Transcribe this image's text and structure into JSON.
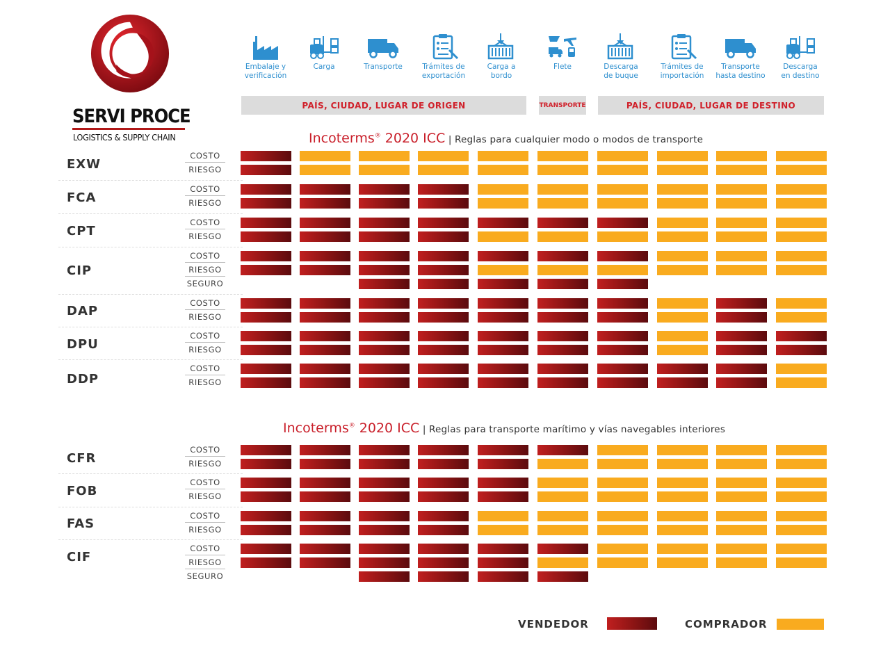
{
  "brand": {
    "name": "SERVI PROCE",
    "tagline": "LOGISTICS & SUPPLY CHAIN"
  },
  "colors": {
    "vendedor": "#8a1414",
    "comprador": "#f9ab1f",
    "title_red": "#c91f2a",
    "step_blue": "#2e8fcf"
  },
  "steps": [
    {
      "label": "Embalaje y\nverificación",
      "icon": "factory-icon"
    },
    {
      "label": "Carga",
      "icon": "forklift-icon"
    },
    {
      "label": "Transporte",
      "icon": "truck-icon"
    },
    {
      "label": "Trámites de\nexportación",
      "icon": "clipboard-icon"
    },
    {
      "label": "Carga a\nbordo",
      "icon": "crane-container-icon"
    },
    {
      "label": "Flete",
      "icon": "multimodal-freight-icon"
    },
    {
      "label": "Descarga\nde buque",
      "icon": "crane-container-icon"
    },
    {
      "label": "Trámites de\nimportación",
      "icon": "clipboard-icon"
    },
    {
      "label": "Transporte\nhasta destino",
      "icon": "truck-icon"
    },
    {
      "label": "Descarga\nen destino",
      "icon": "forklift-icon"
    }
  ],
  "banners": {
    "origin": "PAÍS, CIUDAD, LUGAR DE ORIGEN",
    "transport": "TRANSPORTE",
    "destination": "PAÍS, CIUDAD, LUGAR DE DESTINO"
  },
  "sections": [
    {
      "title": "Incoterms",
      "title_mark": "®",
      "title_year": " 2020 ICC",
      "subtitle": "| Reglas para cualquier modo o modos de transporte",
      "terms": [
        {
          "code": "EXW",
          "rows": [
            {
              "kind": "COSTO",
              "cells": "SBBBBBBBBB"
            },
            {
              "kind": "RIESGO",
              "cells": "SBBBBBBBBB"
            }
          ]
        },
        {
          "code": "FCA",
          "rows": [
            {
              "kind": "COSTO",
              "cells": "SSSSBBBBBB"
            },
            {
              "kind": "RIESGO",
              "cells": "SSSSBBBBBB"
            }
          ]
        },
        {
          "code": "CPT",
          "rows": [
            {
              "kind": "COSTO",
              "cells": "SSSSSSSBBB"
            },
            {
              "kind": "RIESGO",
              "cells": "SSSSBBBBBB"
            }
          ]
        },
        {
          "code": "CIP",
          "rows": [
            {
              "kind": "COSTO",
              "cells": "SSSSSSSBBB"
            },
            {
              "kind": "RIESGO",
              "cells": "SSSSBBBBBB"
            },
            {
              "kind": "SEGURO",
              "cells": "--SSSSS---"
            }
          ]
        },
        {
          "code": "DAP",
          "rows": [
            {
              "kind": "COSTO",
              "cells": "SSSSSSSBSB"
            },
            {
              "kind": "RIESGO",
              "cells": "SSSSSSSBSB"
            }
          ]
        },
        {
          "code": "DPU",
          "rows": [
            {
              "kind": "COSTO",
              "cells": "SSSSSSSBSS"
            },
            {
              "kind": "RIESGO",
              "cells": "SSSSSSSBSS"
            }
          ]
        },
        {
          "code": "DDP",
          "rows": [
            {
              "kind": "COSTO",
              "cells": "SSSSSSSSSB"
            },
            {
              "kind": "RIESGO",
              "cells": "SSSSSSSSSB"
            }
          ]
        }
      ]
    },
    {
      "title": "Incoterms",
      "title_mark": "®",
      "title_year": " 2020 ICC",
      "subtitle": "| Reglas para transporte marítimo y vías navegables interiores",
      "terms": [
        {
          "code": "CFR",
          "rows": [
            {
              "kind": "COSTO",
              "cells": "SSSSSSBBBB"
            },
            {
              "kind": "RIESGO",
              "cells": "SSSSSBBBBB"
            }
          ]
        },
        {
          "code": "FOB",
          "rows": [
            {
              "kind": "COSTO",
              "cells": "SSSSSBBBBB"
            },
            {
              "kind": "RIESGO",
              "cells": "SSSSSBBBBB"
            }
          ]
        },
        {
          "code": "FAS",
          "rows": [
            {
              "kind": "COSTO",
              "cells": "SSSSBBBBBB"
            },
            {
              "kind": "RIESGO",
              "cells": "SSSSBBBBBB"
            }
          ]
        },
        {
          "code": "CIF",
          "rows": [
            {
              "kind": "COSTO",
              "cells": "SSSSSSBBBB"
            },
            {
              "kind": "RIESGO",
              "cells": "SSSSSBBBBB"
            },
            {
              "kind": "SEGURO",
              "cells": "--SSSS----"
            }
          ]
        }
      ]
    }
  ],
  "legend": {
    "vendedor": "VENDEDOR",
    "comprador": "COMPRADOR"
  }
}
